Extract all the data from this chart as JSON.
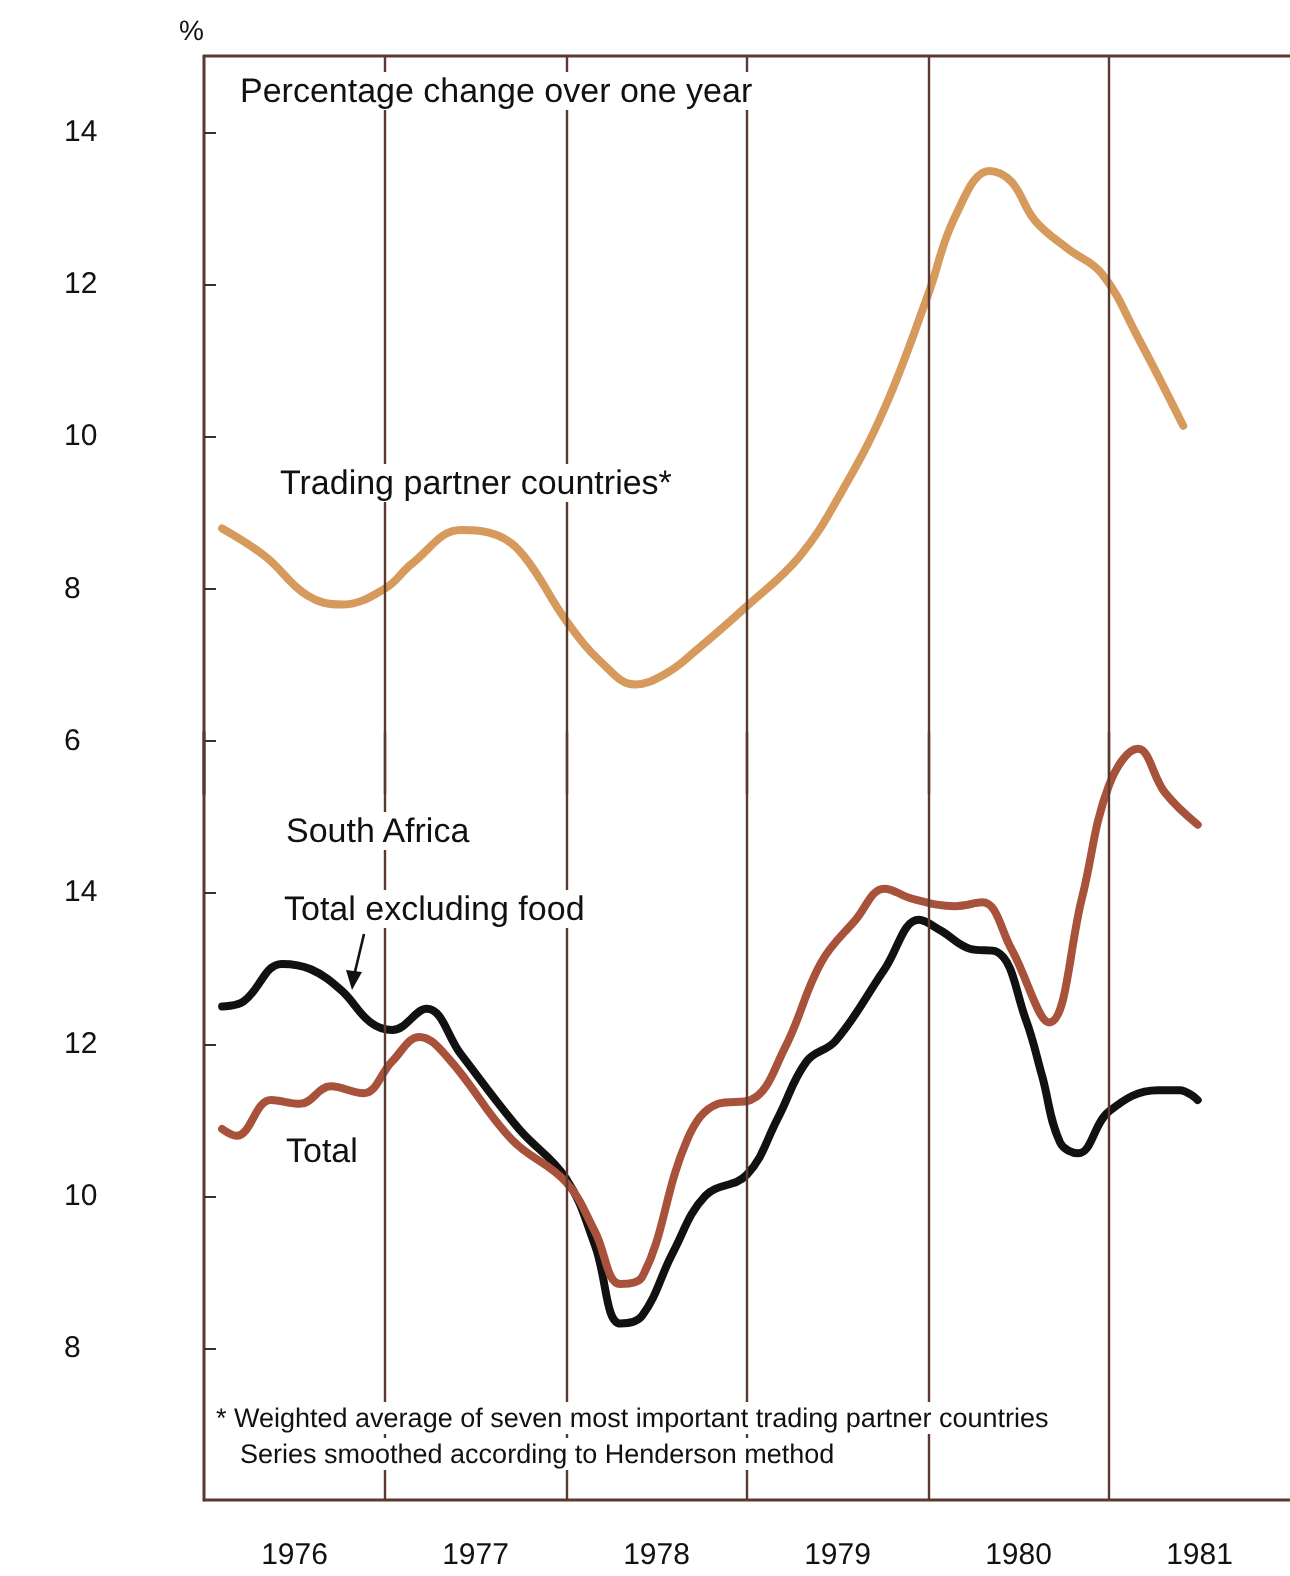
{
  "chart_data": [
    {
      "type": "line",
      "title": "Percentage change over one year",
      "ylabel": "%",
      "tick_labels": "y",
      "grid": false,
      "legend": false,
      "marker": "none",
      "line_style": "solid",
      "xlim": [
        1976,
        1982
      ],
      "ylim": [
        5.3,
        15
      ],
      "yticks": [
        6,
        8,
        10,
        12,
        14
      ],
      "ref_lines": [
        {
          "axis": "x",
          "value": 1977,
          "color": "#5a3a30"
        },
        {
          "axis": "x",
          "value": 1978,
          "color": "#5a3a30"
        },
        {
          "axis": "x",
          "value": 1979,
          "color": "#5a3a30"
        },
        {
          "axis": "x",
          "value": 1980,
          "color": "#5a3a30"
        },
        {
          "axis": "x",
          "value": 1981,
          "color": "#5a3a30"
        }
      ],
      "series": [
        {
          "name": "Trading partner countries*",
          "color": "#d69a5c",
          "x": [
            1976.1,
            1976.34,
            1976.57,
            1976.76,
            1977.0,
            1977.15,
            1977.42,
            1977.62,
            1977.77,
            1978.0,
            1978.2,
            1978.38,
            1978.55,
            1978.73,
            1979.0,
            1979.29,
            1979.52,
            1979.76,
            1980.0,
            1980.15,
            1980.34,
            1980.46,
            1980.59,
            1980.77,
            1980.96,
            1981.16,
            1981.41
          ],
          "values": [
            8.79,
            8.42,
            7.91,
            7.79,
            8.0,
            8.33,
            8.77,
            8.7,
            8.42,
            7.58,
            7.02,
            6.74,
            6.88,
            7.21,
            7.77,
            8.42,
            9.26,
            10.37,
            11.86,
            12.89,
            13.49,
            13.35,
            12.84,
            12.47,
            12.14,
            11.3,
            10.14
          ]
        }
      ]
    },
    {
      "type": "line",
      "grid": false,
      "legend": false,
      "marker": "none",
      "line_style": "solid",
      "annotations": [
        "South Africa",
        "* Weighted average of seven most important trading partner countries",
        "Series smoothed according to Henderson method"
      ],
      "xlim": [
        1976,
        1982
      ],
      "ylim": [
        6,
        16.1
      ],
      "yticks": [
        8,
        10,
        12,
        14
      ],
      "xticks": [
        {
          "value": 1976.5,
          "label": "1976"
        },
        {
          "value": 1977.5,
          "label": "1977"
        },
        {
          "value": 1978.5,
          "label": "1978"
        },
        {
          "value": 1979.5,
          "label": "1979"
        },
        {
          "value": 1980.5,
          "label": "1980"
        },
        {
          "value": 1981.5,
          "label": "1981"
        }
      ],
      "ref_lines": [
        {
          "axis": "x",
          "value": 1977,
          "color": "#5a3a30"
        },
        {
          "axis": "x",
          "value": 1978,
          "color": "#5a3a30"
        },
        {
          "axis": "x",
          "value": 1979,
          "color": "#5a3a30"
        },
        {
          "axis": "x",
          "value": 1980,
          "color": "#5a3a30"
        },
        {
          "axis": "x",
          "value": 1981,
          "color": "#5a3a30"
        }
      ],
      "series": [
        {
          "name": "Total excluding food",
          "color": "#111111",
          "x": [
            1976.1,
            1976.22,
            1976.43,
            1976.59,
            1976.76,
            1976.92,
            1977.04,
            1977.23,
            1977.42,
            1977.74,
            1978.0,
            1978.16,
            1978.3,
            1978.42,
            1978.59,
            1978.77,
            1979.0,
            1979.17,
            1979.33,
            1979.49,
            1979.76,
            1979.95,
            1980.07,
            1980.23,
            1980.38,
            1980.54,
            1980.63,
            1980.73,
            1980.83,
            1981.0,
            1981.27,
            1981.39,
            1981.49
          ],
          "values": [
            12.49,
            12.56,
            13.05,
            12.98,
            12.7,
            12.28,
            12.18,
            12.46,
            11.86,
            10.88,
            10.23,
            9.35,
            8.32,
            8.42,
            9.25,
            10.0,
            10.28,
            11.02,
            11.77,
            12.04,
            12.98,
            13.63,
            13.49,
            13.25,
            13.21,
            12.32,
            11.58,
            10.7,
            10.56,
            11.11,
            11.39,
            11.39,
            11.26
          ]
        },
        {
          "name": "Total",
          "color": "#a8523c",
          "x": [
            1976.1,
            1976.18,
            1976.37,
            1976.53,
            1976.7,
            1976.88,
            1977.04,
            1977.19,
            1977.35,
            1977.7,
            1978.0,
            1978.16,
            1978.3,
            1978.42,
            1978.67,
            1978.84,
            1979.02,
            1979.21,
            1979.41,
            1979.6,
            1979.76,
            1979.91,
            1980.15,
            1980.3,
            1980.46,
            1980.67,
            1980.85,
            1981.0,
            1981.16,
            1981.31,
            1981.49
          ],
          "values": [
            10.88,
            10.79,
            11.26,
            11.21,
            11.44,
            11.35,
            11.77,
            12.09,
            11.81,
            10.74,
            10.18,
            9.53,
            8.84,
            8.93,
            10.74,
            11.21,
            11.26,
            11.95,
            13.07,
            13.63,
            14.04,
            13.91,
            13.81,
            13.86,
            13.25,
            12.28,
            13.91,
            15.4,
            15.88,
            15.3,
            14.88
          ]
        }
      ]
    }
  ]
}
